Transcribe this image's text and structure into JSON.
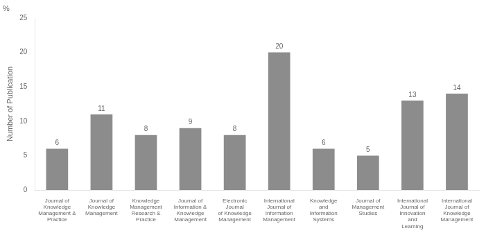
{
  "chart_data": {
    "type": "bar",
    "categories": [
      "Journal of\nKnowledge\nManagement &\nPractice",
      "Journal of\nKnowledge\nManagement",
      "Knowledge\nManagement\nResearch &\nPractice",
      "Journal of\nInformation &\nKnowledge\nManagement",
      "Electronic\nJournal\nof Knowledge\nManagement",
      "International\nJournal of\nInformation\nManagement",
      "Knowledge\nand\nInformation\nSystems",
      "Journal of\nManagement\nStudies",
      "International\nJournal of\nInnovation\nand\nLearning",
      "International\nJournal of\nKnowledge\nManagement"
    ],
    "values": [
      6,
      11,
      8,
      9,
      8,
      20,
      6,
      5,
      13,
      14
    ],
    "color": "#8c8c8c",
    "ylabel": "Number of Publication",
    "annotations": [
      "%"
    ],
    "ylim": [
      0,
      25
    ],
    "yticks": [
      0,
      5,
      10,
      15,
      20,
      25
    ],
    "grid": false,
    "data_labels": true
  }
}
